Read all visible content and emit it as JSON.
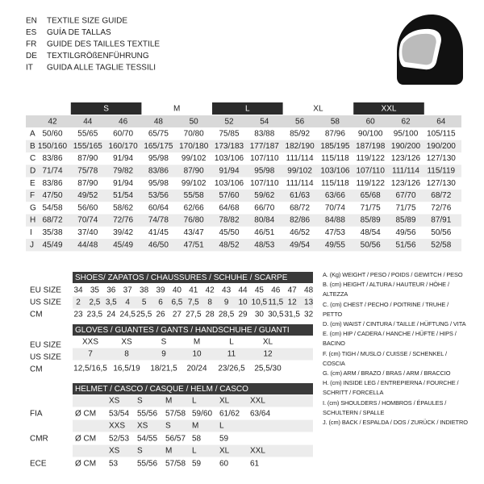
{
  "header": {
    "lines": [
      {
        "code": "EN",
        "text": "TEXTILE SIZE GUIDE"
      },
      {
        "code": "ES",
        "text": "GUÍA DE TALLAS"
      },
      {
        "code": "FR",
        "text": "GUIDE DES TAILLES TEXTILE"
      },
      {
        "code": "DE",
        "text": "TEXTILGRÖßENFÜHRUNG"
      },
      {
        "code": "IT",
        "text": "GUIDA ALLE TAGLIE TESSILI"
      }
    ]
  },
  "main_table": {
    "size_bands": [
      "S",
      "M",
      "L",
      "XL",
      "XXL"
    ],
    "columns": [
      42,
      44,
      46,
      48,
      50,
      52,
      54,
      56,
      58,
      60,
      62,
      64
    ],
    "rows": [
      {
        "label": "A",
        "values": [
          "50/60",
          "55/65",
          "60/70",
          "65/75",
          "70/80",
          "75/85",
          "83/88",
          "85/92",
          "87/96",
          "90/100",
          "95/100",
          "105/115"
        ]
      },
      {
        "label": "B",
        "values": [
          "150/160",
          "155/165",
          "160/170",
          "165/175",
          "170/180",
          "173/183",
          "177/187",
          "182/190",
          "185/195",
          "187/198",
          "190/200",
          "190/200"
        ]
      },
      {
        "label": "C",
        "values": [
          "83/86",
          "87/90",
          "91/94",
          "95/98",
          "99/102",
          "103/106",
          "107/110",
          "111/114",
          "115/118",
          "119/122",
          "123/126",
          "127/130"
        ]
      },
      {
        "label": "D",
        "values": [
          "71/74",
          "75/78",
          "79/82",
          "83/86",
          "87/90",
          "91/94",
          "95/98",
          "99/102",
          "103/106",
          "107/110",
          "111/114",
          "115/119"
        ]
      },
      {
        "label": "E",
        "values": [
          "83/86",
          "87/90",
          "91/94",
          "95/98",
          "99/102",
          "103/106",
          "107/110",
          "111/114",
          "115/118",
          "119/122",
          "123/126",
          "127/130"
        ]
      },
      {
        "label": "F",
        "values": [
          "47/50",
          "49/52",
          "51/54",
          "53/56",
          "55/58",
          "57/60",
          "59/62",
          "61/63",
          "63/66",
          "65/68",
          "67/70",
          "68/72"
        ]
      },
      {
        "label": "G",
        "values": [
          "54/58",
          "56/60",
          "58/62",
          "60/64",
          "62/66",
          "64/68",
          "66/70",
          "68/72",
          "70/74",
          "71/75",
          "71/75",
          "72/76"
        ]
      },
      {
        "label": "H",
        "values": [
          "68/72",
          "70/74",
          "72/76",
          "74/78",
          "76/80",
          "78/82",
          "80/84",
          "82/86",
          "84/88",
          "85/89",
          "85/89",
          "87/91"
        ]
      },
      {
        "label": "I",
        "values": [
          "35/38",
          "37/40",
          "39/42",
          "41/45",
          "43/47",
          "45/50",
          "46/51",
          "46/52",
          "47/53",
          "48/54",
          "49/56",
          "50/56"
        ]
      },
      {
        "label": "J",
        "values": [
          "45/49",
          "44/48",
          "45/49",
          "46/50",
          "47/51",
          "48/52",
          "48/53",
          "49/54",
          "49/55",
          "50/56",
          "51/56",
          "52/58"
        ]
      }
    ]
  },
  "shoes": {
    "title": "SHOES/ ZAPATOS / CHAUSSURES / SCHUHE / SCARPE",
    "rows": [
      {
        "label": "EU SIZE",
        "values": [
          "34",
          "35",
          "36",
          "37",
          "38",
          "39",
          "40",
          "41",
          "42",
          "43",
          "44",
          "45",
          "46",
          "47",
          "48"
        ]
      },
      {
        "label": "US SIZE",
        "values": [
          "2",
          "2,5",
          "3,5",
          "4",
          "5",
          "6",
          "6,5",
          "7,5",
          "8",
          "9",
          "10",
          "10,5",
          "11,5",
          "12",
          "13"
        ]
      },
      {
        "label": "CM",
        "values": [
          "23",
          "23,5",
          "24",
          "24,5",
          "25,5",
          "26",
          "27",
          "27,5",
          "28",
          "28,5",
          "29",
          "30",
          "30,5",
          "31,5",
          "32"
        ]
      }
    ]
  },
  "gloves": {
    "title": "GLOVES / GUANTES / GANTS / HANDSCHUHE / GUANTI",
    "rows": [
      {
        "label": "EU SIZE",
        "values": [
          "XXS",
          "XS",
          "S",
          "M",
          "L",
          "XL"
        ]
      },
      {
        "label": "US SIZE",
        "values": [
          "7",
          "8",
          "9",
          "10",
          "11",
          "12"
        ]
      },
      {
        "label": "CM",
        "values": [
          "12,5/16,5",
          "16,5/19",
          "18/21,5",
          "20/24",
          "23/26,5",
          "25,5/30"
        ]
      }
    ]
  },
  "helmet": {
    "title": "HELMET / CASCO / CASQUE / HELM / CASCO",
    "groups": [
      {
        "label": "FIA",
        "sizes": [
          "XS",
          "S",
          "M",
          "L",
          "XL",
          "XXL"
        ],
        "unit": "Ø CM",
        "values": [
          "53/54",
          "55/56",
          "57/58",
          "59/60",
          "61/62",
          "63/64"
        ]
      },
      {
        "label": "CMR",
        "sizes": [
          "XXS",
          "XS",
          "S",
          "M",
          "L"
        ],
        "unit": "Ø CM",
        "values": [
          "52/53",
          "54/55",
          "56/57",
          "58",
          "59"
        ]
      },
      {
        "label": "ECE",
        "sizes": [
          "XS",
          "S",
          "M",
          "L",
          "XL",
          "XXL"
        ],
        "unit": "Ø CM",
        "values": [
          "53",
          "55/56",
          "57/58",
          "59",
          "60",
          "61"
        ]
      }
    ]
  },
  "legend": [
    "A. (Kg) WEIGHT / PESO / POIDS / GEWITCH / PESO",
    "B. (cm) HEIGHT / ALTURA / HAUTEUR / HÖHE / ALTEZZA",
    "C. (cm) CHEST / PECHO / POITRINE / TRUHE / PETTO",
    "D. (cm) WAIST / CINTURA / TAILLE / HÜFTUNG / VITA",
    "E. (cm) HIP / CADERA / HANCHE / HÜFTE / HIPS / BACINO",
    "F. (cm) TIGH / MUSLO / CUISSE / SCHENKEL / COSCIA",
    "G. (cm) ARM / BRAZO / BRAS / ARM / BRACCIO",
    "H. (cm) INSIDE LEG / ENTREPIERNA / FOURCHE / SCHRITT / FORCELLA",
    "I. (cm) SHOULDERS / HOMBROS / ÉPAULES / SCHULTERN / SPALLE",
    "J. (cm) BACK / ESPALDA / DOS / ZURÜCK / INDIETRO"
  ]
}
